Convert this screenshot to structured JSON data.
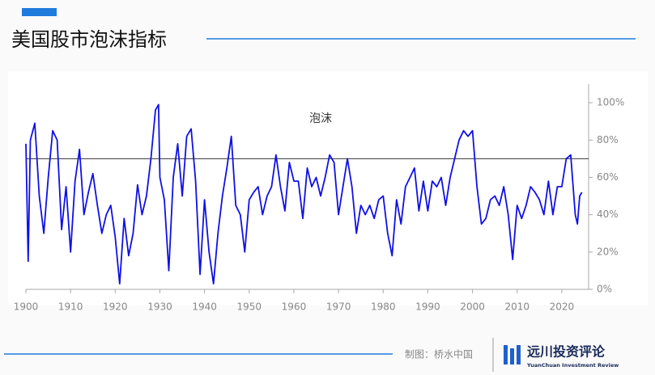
{
  "chart_data": {
    "type": "line",
    "title": "美国股市泡沫指标",
    "annotation": "泡沫",
    "x": [
      1900,
      1900.5,
      1901,
      1902,
      1903,
      1904,
      1905,
      1906,
      1907,
      1908,
      1909,
      1910,
      1911,
      1912,
      1913,
      1914,
      1915,
      1916,
      1917,
      1918,
      1919,
      1920,
      1921,
      1922,
      1923,
      1924,
      1925,
      1926,
      1927,
      1928,
      1929,
      1929.7,
      1930,
      1931,
      1932,
      1933,
      1934,
      1935,
      1936,
      1937,
      1938,
      1939,
      1940,
      1941,
      1942,
      1943,
      1944,
      1945,
      1946,
      1947,
      1948,
      1949,
      1950,
      1951,
      1952,
      1953,
      1954,
      1955,
      1956,
      1957,
      1958,
      1959,
      1960,
      1961,
      1962,
      1963,
      1964,
      1965,
      1966,
      1967,
      1968,
      1969,
      1970,
      1971,
      1972,
      1973,
      1974,
      1975,
      1976,
      1977,
      1978,
      1979,
      1980,
      1981,
      1982,
      1983,
      1984,
      1985,
      1986,
      1987,
      1988,
      1989,
      1990,
      1991,
      1992,
      1993,
      1994,
      1995,
      1996,
      1997,
      1998,
      1999,
      2000,
      2001,
      2002,
      2003,
      2004,
      2005,
      2006,
      2007,
      2008,
      2009,
      2010,
      2011,
      2012,
      2013,
      2014,
      2015,
      2016,
      2017,
      2018,
      2019,
      2020,
      2021,
      2022,
      2023,
      2023.5,
      2024,
      2024.5
    ],
    "series": [
      {
        "color": "#1010e8",
        "values": [
          78,
          15,
          80,
          89,
          50,
          30,
          60,
          85,
          80,
          32,
          55,
          20,
          58,
          75,
          40,
          52,
          62,
          45,
          30,
          40,
          45,
          28,
          3,
          38,
          18,
          30,
          56,
          40,
          50,
          70,
          96,
          99,
          60,
          48,
          10,
          60,
          78,
          50,
          82,
          86,
          58,
          8,
          48,
          20,
          3,
          30,
          50,
          65,
          82,
          45,
          40,
          20,
          48,
          52,
          55,
          40,
          50,
          55,
          72,
          55,
          42,
          68,
          58,
          58,
          38,
          65,
          55,
          60,
          50,
          60,
          72,
          68,
          40,
          55,
          70,
          55,
          30,
          45,
          40,
          45,
          38,
          48,
          50,
          30,
          18,
          48,
          35,
          55,
          60,
          65,
          42,
          58,
          42,
          58,
          55,
          60,
          45,
          60,
          70,
          80,
          85,
          82,
          85,
          55,
          35,
          38,
          48,
          50,
          45,
          55,
          40,
          16,
          45,
          38,
          45,
          55,
          52,
          48,
          40,
          58,
          40,
          55,
          55,
          70,
          72,
          40,
          35,
          50,
          52
        ]
      }
    ],
    "hlines": [
      70
    ],
    "xlim": [
      1900,
      2026
    ],
    "ylim": [
      0,
      110
    ],
    "xticks": [
      1900,
      1910,
      1920,
      1930,
      1940,
      1950,
      1960,
      1970,
      1980,
      1990,
      2000,
      2010,
      2020
    ],
    "yticks": [
      {
        "value": 0,
        "label": "0%"
      },
      {
        "value": 20,
        "label": "20%"
      },
      {
        "value": 40,
        "label": "40%"
      },
      {
        "value": 60,
        "label": "60%"
      },
      {
        "value": 80,
        "label": "80%"
      },
      {
        "value": 100,
        "label": "100%"
      }
    ],
    "grid": false
  },
  "footer": {
    "credit": "制图：桥水中国",
    "brand": "远川投资评论",
    "brand_en": "YuanChuan Investment Review"
  }
}
